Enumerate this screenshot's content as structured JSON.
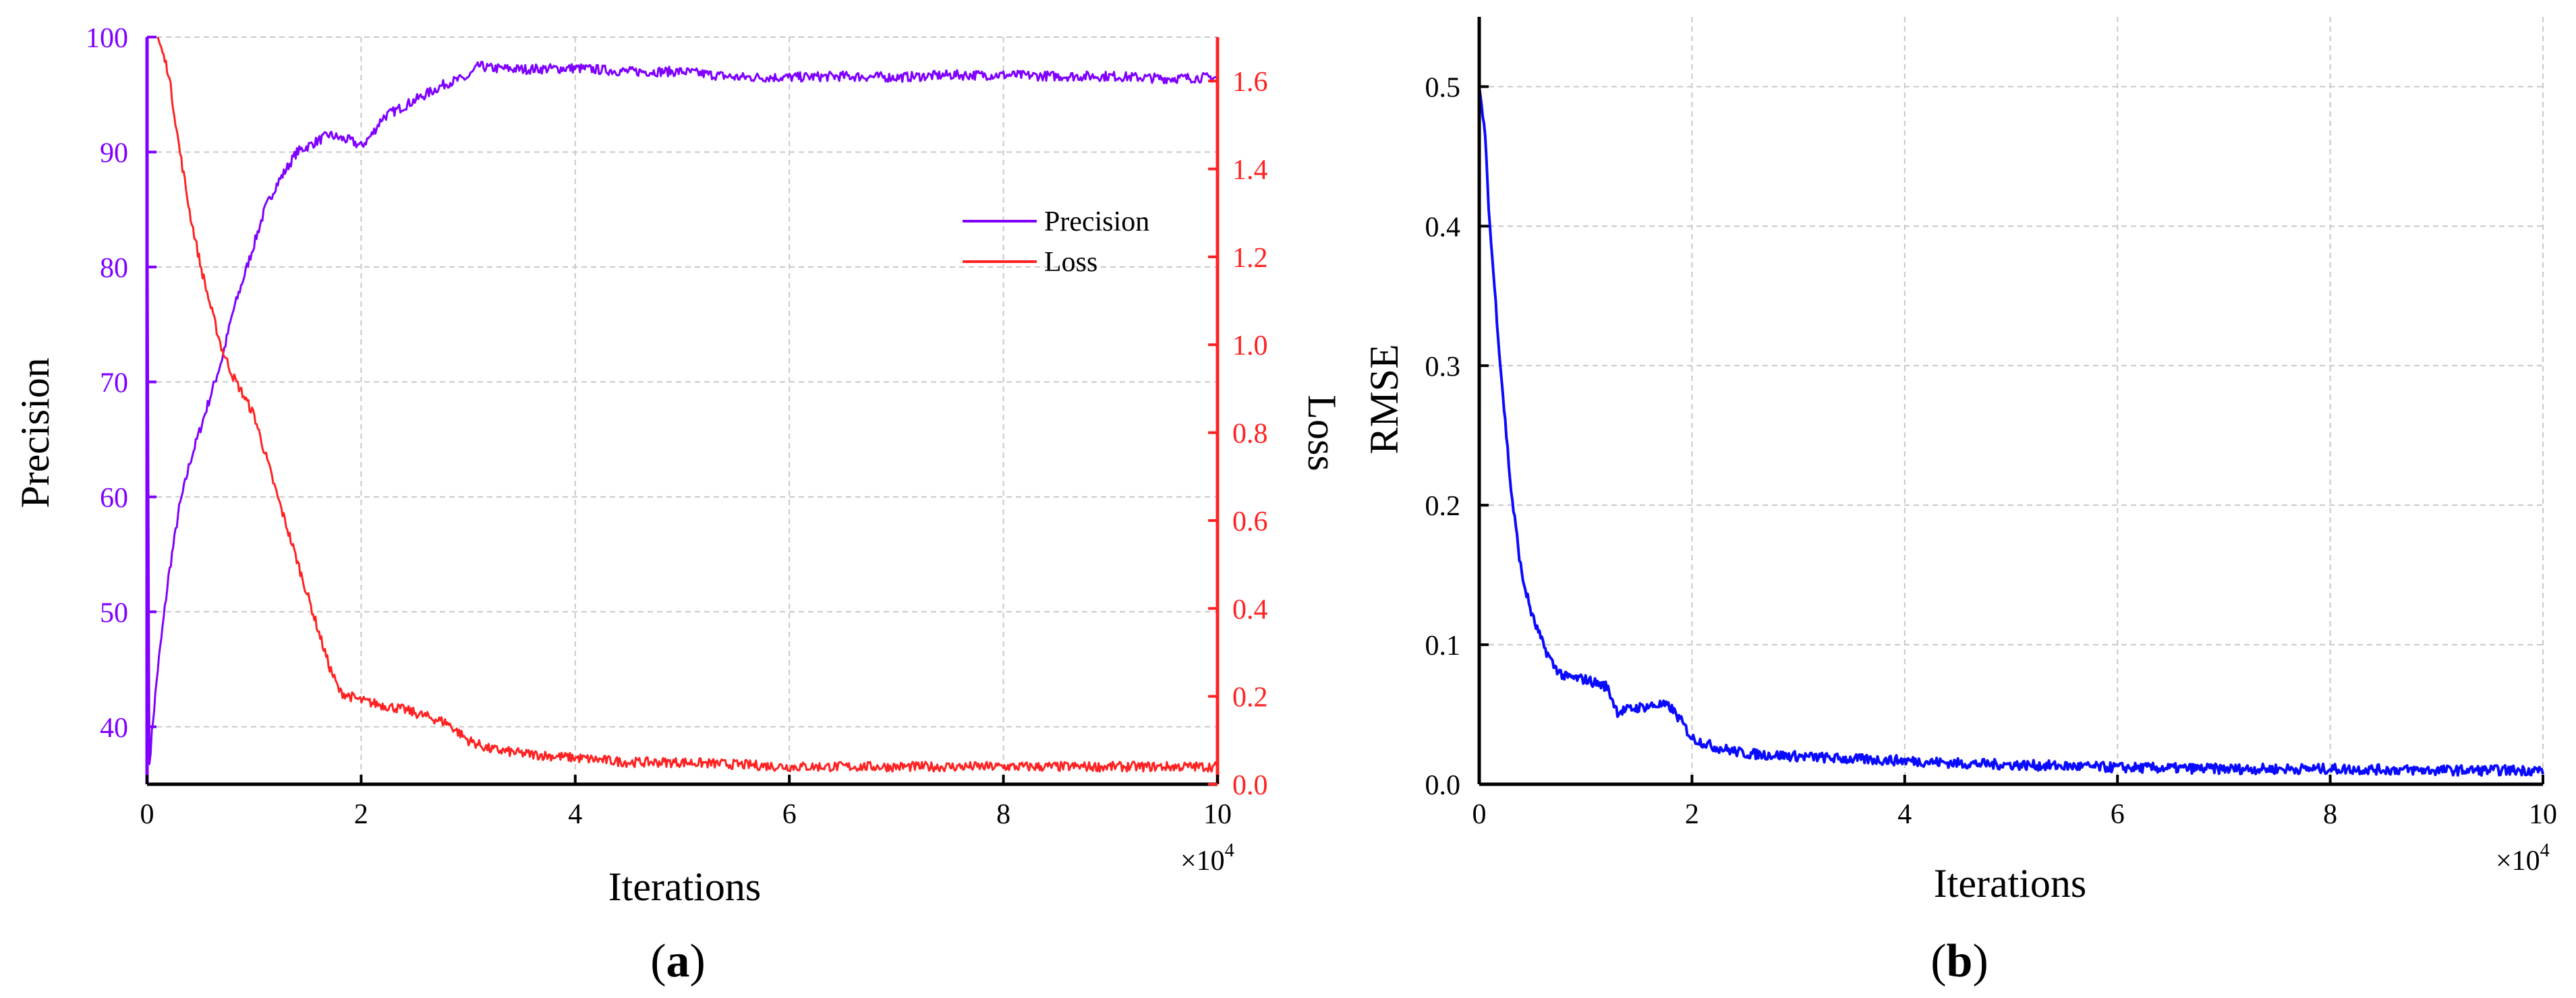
{
  "colors": {
    "precision": "#7f00ff",
    "loss": "#ff2222",
    "rmse": "#0a0aff",
    "axis": "#000000",
    "grid": "#c8c8c8"
  },
  "panels": {
    "a": {
      "label_letter": "a"
    },
    "b": {
      "label_letter": "b"
    }
  },
  "chart_data": [
    {
      "panel": "a",
      "type": "line",
      "xlabel": "Iterations",
      "x_multiplier_label": "×10",
      "x_multiplier_exp": "4",
      "xlim": [
        0,
        10
      ],
      "xticks": [
        0,
        2,
        4,
        6,
        8,
        10
      ],
      "ylabel": "Precision",
      "ylim": [
        35,
        100
      ],
      "yticks": [
        40,
        50,
        60,
        70,
        80,
        90,
        100
      ],
      "y2label": "Loss",
      "y2lim": [
        0,
        1.7
      ],
      "y2ticks": [
        "0.0",
        "0.2",
        "0.4",
        "0.6",
        "0.8",
        "1.0",
        "1.2",
        "1.4",
        "1.6"
      ],
      "grid": true,
      "legend_position": "top-right",
      "series": [
        {
          "name": "Precision",
          "axis": "left",
          "x": [
            0,
            0.02,
            0.05,
            0.1,
            0.2,
            0.3,
            0.4,
            0.5,
            0.6,
            0.7,
            0.8,
            0.9,
            1.0,
            1.1,
            1.2,
            1.3,
            1.4,
            1.5,
            1.6,
            1.7,
            1.8,
            1.9,
            2.0,
            2.1,
            2.2,
            2.4,
            2.6,
            2.8,
            3.0,
            3.1,
            3.2,
            3.5,
            4.0,
            4.5,
            5.0,
            5.5,
            6.0,
            6.5,
            7.0,
            7.5,
            8.0,
            8.5,
            9.0,
            9.5,
            10.0
          ],
          "values": [
            100,
            36.5,
            40,
            45,
            53,
            59,
            63,
            66,
            69,
            72,
            76,
            79,
            82,
            85,
            87,
            88.5,
            90,
            90.5,
            91,
            91.5,
            91.2,
            91,
            90.5,
            91.5,
            93,
            94,
            95,
            96,
            96.5,
            97.5,
            97.3,
            97.2,
            97.3,
            97,
            97,
            96.5,
            96.5,
            96.6,
            96.5,
            96.7,
            96.7,
            96.6,
            96.6,
            96.4,
            96.5
          ]
        },
        {
          "name": "Loss",
          "axis": "right",
          "x": [
            0.1,
            0.2,
            0.3,
            0.4,
            0.5,
            0.6,
            0.7,
            0.8,
            1.0,
            1.2,
            1.4,
            1.6,
            1.7,
            1.8,
            2.0,
            2.4,
            2.8,
            3.0,
            3.2,
            3.5,
            4.0,
            4.5,
            5.0,
            6.0,
            7.0,
            8.0,
            9.0,
            10.0
          ],
          "values": [
            1.7,
            1.62,
            1.45,
            1.3,
            1.18,
            1.08,
            0.99,
            0.93,
            0.84,
            0.67,
            0.51,
            0.35,
            0.27,
            0.21,
            0.19,
            0.17,
            0.14,
            0.1,
            0.08,
            0.07,
            0.06,
            0.05,
            0.05,
            0.04,
            0.04,
            0.04,
            0.04,
            0.04
          ]
        }
      ]
    },
    {
      "panel": "b",
      "type": "line",
      "xlabel": "Iterations",
      "x_multiplier_label": "×10",
      "x_multiplier_exp": "4",
      "xlim": [
        0,
        10
      ],
      "xticks": [
        0,
        2,
        4,
        6,
        8,
        10
      ],
      "ylabel": "RMSE",
      "ylim": [
        0,
        0.55
      ],
      "yticks": [
        "0.0",
        "0.1",
        "0.2",
        "0.3",
        "0.4",
        "0.5"
      ],
      "grid": true,
      "series": [
        {
          "name": "",
          "axis": "left",
          "x": [
            0,
            0.05,
            0.1,
            0.2,
            0.3,
            0.4,
            0.5,
            0.6,
            0.7,
            0.8,
            1.0,
            1.2,
            1.3,
            1.5,
            1.7,
            1.8,
            1.9,
            2.0,
            2.2,
            2.5,
            3.0,
            3.5,
            4.0,
            4.5,
            5.0,
            6.0,
            7.0,
            8.0,
            9.0,
            10.0
          ],
          "values": [
            0.5,
            0.47,
            0.4,
            0.3,
            0.21,
            0.15,
            0.12,
            0.1,
            0.085,
            0.077,
            0.075,
            0.07,
            0.052,
            0.055,
            0.057,
            0.055,
            0.045,
            0.033,
            0.027,
            0.022,
            0.02,
            0.018,
            0.017,
            0.015,
            0.014,
            0.012,
            0.011,
            0.011,
            0.01,
            0.01
          ]
        }
      ]
    }
  ]
}
